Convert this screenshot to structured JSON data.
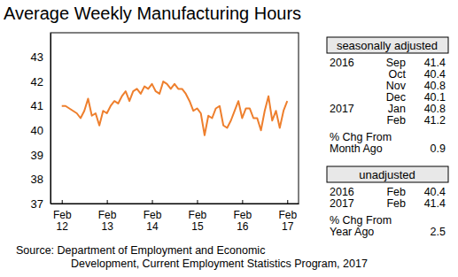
{
  "chart_data": {
    "type": "line",
    "title": "Average Weekly Manufacturing Hours",
    "categories": [
      "Feb 12",
      null,
      null,
      null,
      null,
      null,
      null,
      null,
      null,
      null,
      null,
      null,
      "Feb 13",
      null,
      null,
      null,
      null,
      null,
      null,
      null,
      null,
      null,
      null,
      null,
      "Feb 14",
      null,
      null,
      null,
      null,
      null,
      null,
      null,
      null,
      null,
      null,
      null,
      "Feb 15",
      null,
      null,
      null,
      null,
      null,
      null,
      null,
      null,
      null,
      null,
      null,
      "Feb 16",
      null,
      null,
      null,
      null,
      null,
      null,
      null,
      null,
      null,
      null,
      null,
      "Feb 17"
    ],
    "values": [
      41.0,
      41.0,
      40.9,
      40.8,
      40.7,
      40.5,
      40.8,
      41.3,
      40.6,
      40.7,
      40.2,
      40.8,
      40.7,
      41.0,
      41.2,
      41.1,
      41.4,
      41.6,
      41.2,
      41.6,
      41.7,
      41.5,
      41.8,
      41.7,
      41.9,
      41.6,
      41.5,
      42.0,
      41.9,
      41.7,
      41.9,
      41.7,
      41.7,
      41.5,
      41.2,
      40.8,
      40.9,
      40.7,
      39.8,
      40.6,
      40.5,
      40.9,
      41.0,
      40.2,
      40.1,
      40.4,
      40.8,
      41.2,
      40.5,
      40.9,
      40.9,
      40.5,
      40.5,
      40.0,
      40.8,
      41.4,
      40.4,
      40.8,
      40.1,
      40.8,
      41.2
    ],
    "color": "#ee7f2d",
    "ylim": [
      37,
      44
    ],
    "yticks": [
      37,
      38,
      39,
      40,
      41,
      42,
      43
    ],
    "grid": false,
    "panels": [
      {
        "header": "seasonally adjusted",
        "rows": [
          {
            "year": "2016",
            "month": "Sep",
            "value": 41.4
          },
          {
            "month": "Oct",
            "value": 40.4
          },
          {
            "month": "Nov",
            "value": 40.8
          },
          {
            "month": "Dec",
            "value": 40.1
          },
          {
            "year": "2017",
            "month": "Jan",
            "value": 40.8
          },
          {
            "month": "Feb",
            "value": 41.2
          }
        ],
        "change_label": [
          "% Chg From",
          "Month Ago"
        ],
        "change": 0.9
      },
      {
        "header": "unadjusted",
        "rows": [
          {
            "year": "2016",
            "month": "Feb",
            "value": 40.4
          },
          {
            "year": "2017",
            "month": "Feb",
            "value": 41.4
          }
        ],
        "change_label": [
          "% Chg From",
          "Year Ago"
        ],
        "change": 2.5
      }
    ],
    "source": [
      "Source: Department of Employment and Economic",
      "Development, Current Employment Statistics Program, 2017"
    ]
  }
}
